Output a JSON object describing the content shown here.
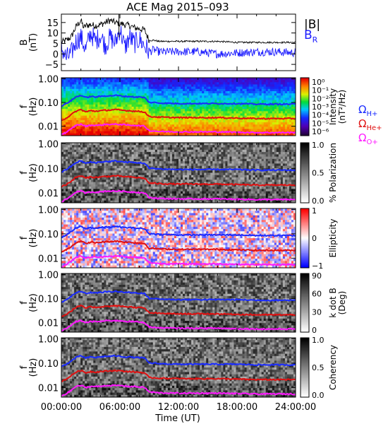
{
  "title": "ACE Mag 2015–093",
  "xlabel": "Time (UT)",
  "x_ticks": [
    "00:00:00",
    "06:00:00",
    "12:00:00",
    "18:00:00",
    "24:00:00"
  ],
  "x_range_hours": [
    0,
    24
  ],
  "colors": {
    "B_total": "#000000",
    "B_R": "#1a1aff",
    "H_plus": "#1a2bff",
    "He_plus": "#e01010",
    "O_plus": "#ff19ff"
  },
  "legend": {
    "b_total": "|B|",
    "b_r": "B",
    "b_r_sub": "R",
    "omega": "Ω",
    "h_sub": "H+",
    "he_sub": "He+",
    "o_sub": "O+"
  },
  "chart_data": [
    {
      "type": "line",
      "ylabel_main": "B",
      "ylabel_unit": "(nT)",
      "ylim": [
        -8,
        19
      ],
      "y_ticks": [
        "15",
        "10",
        "5",
        "0",
        "−5"
      ],
      "y_tick_values": [
        15,
        10,
        5,
        0,
        -5
      ],
      "series": [
        {
          "name": "|B|",
          "x_hours": [
            0,
            0.5,
            1,
            1.5,
            2,
            2.3,
            2.5,
            3,
            3.5,
            4,
            4.5,
            5,
            5.5,
            6,
            6.5,
            7,
            7.5,
            8,
            8.5,
            9,
            9.5,
            10,
            12,
            14,
            16,
            18,
            20,
            22,
            24
          ],
          "values": [
            5.5,
            6.5,
            8,
            13,
            16,
            12.5,
            13.5,
            14,
            13.5,
            14,
            15,
            16,
            15,
            14.5,
            14,
            13.5,
            12.5,
            12,
            11.5,
            6.5,
            6.5,
            6,
            6,
            6,
            6,
            5.5,
            5.5,
            5.5,
            5.5
          ]
        },
        {
          "name": "BR",
          "x_hours": [
            0,
            0.5,
            1,
            1.5,
            2,
            2.5,
            3,
            3.5,
            4,
            4.5,
            5,
            5.5,
            6,
            6.5,
            7,
            7.5,
            8,
            8.5,
            9,
            9.5,
            10,
            12,
            14,
            16,
            18,
            20,
            22,
            24
          ],
          "values": [
            3,
            -2,
            0,
            6,
            8,
            2,
            10,
            6,
            9,
            4,
            8,
            5,
            12,
            3,
            8,
            5,
            7,
            4,
            1,
            2,
            1,
            1,
            1,
            0,
            0.5,
            1,
            1,
            0.5
          ]
        }
      ]
    },
    {
      "type": "heatmap",
      "ylabel_main": "f",
      "ylabel_unit": "(Hz)",
      "y_log": true,
      "ylim": [
        0.004,
        1.1
      ],
      "y_ticks": [
        "1.00",
        "0.10",
        "0.01"
      ],
      "y_tick_values": [
        1,
        0.1,
        0.01
      ],
      "colorbar_label": "Intensity",
      "colorbar_unit": "(nT²/Hz)",
      "colorbar_ticks": [
        "10⁰",
        "10⁻¹",
        "10⁻²",
        "10⁻³",
        "10⁻⁴",
        "10⁻⁵",
        "10⁻⁶"
      ],
      "colorscale": "rainbow"
    },
    {
      "type": "heatmap",
      "ylabel_main": "f",
      "ylabel_unit": "(Hz)",
      "y_log": true,
      "ylim": [
        0.004,
        1.1
      ],
      "y_ticks": [
        "1.00",
        "0.10",
        "0.01"
      ],
      "y_tick_values": [
        1,
        0.1,
        0.01
      ],
      "colorbar_label": "% Polarization",
      "colorbar_ticks": [
        "1.0",
        "0.5",
        "0.0"
      ],
      "colorscale": "grey"
    },
    {
      "type": "heatmap",
      "ylabel_main": "f",
      "ylabel_unit": "(Hz)",
      "y_log": true,
      "ylim": [
        0.004,
        1.1
      ],
      "y_ticks": [
        "1.00",
        "0.10",
        "0.01"
      ],
      "y_tick_values": [
        1,
        0.1,
        0.01
      ],
      "colorbar_label": "Ellipticity",
      "colorbar_ticks": [
        "1",
        "0",
        "−1"
      ],
      "colorscale": "bluewhitered"
    },
    {
      "type": "heatmap",
      "ylabel_main": "f",
      "ylabel_unit": "(Hz)",
      "y_log": true,
      "ylim": [
        0.004,
        1.1
      ],
      "y_ticks": [
        "1.00",
        "0.10",
        "0.01"
      ],
      "y_tick_values": [
        1,
        0.1,
        0.01
      ],
      "colorbar_label": "k dot B",
      "colorbar_unit": "(Deg)",
      "colorbar_ticks": [
        "90",
        "60",
        "30",
        "0"
      ],
      "colorscale": "grey"
    },
    {
      "type": "heatmap",
      "ylabel_main": "f",
      "ylabel_unit": "(Hz)",
      "y_log": true,
      "ylim": [
        0.004,
        1.1
      ],
      "y_ticks": [
        "1.00",
        "0.10",
        "0.01"
      ],
      "y_tick_values": [
        1,
        0.1,
        0.01
      ],
      "colorbar_label": "Coherency",
      "colorbar_ticks": [
        "1.0",
        "0.5",
        "0.0"
      ],
      "colorscale": "grey"
    }
  ],
  "gyrofrequency_lines": {
    "x_hours": [
      0,
      0.5,
      1,
      1.5,
      2,
      2.5,
      3,
      3.5,
      4,
      4.5,
      5,
      5.5,
      6,
      6.5,
      7,
      7.5,
      8,
      8.5,
      9,
      9.5,
      10,
      12,
      14,
      16,
      18,
      20,
      22,
      24
    ],
    "H_plus_hz": [
      0.07,
      0.09,
      0.12,
      0.17,
      0.2,
      0.16,
      0.18,
      0.17,
      0.18,
      0.19,
      0.19,
      0.2,
      0.19,
      0.18,
      0.18,
      0.17,
      0.17,
      0.16,
      0.1,
      0.1,
      0.095,
      0.09,
      0.09,
      0.09,
      0.09,
      0.085,
      0.085,
      0.085
    ],
    "He_plus_hz": [
      0.018,
      0.022,
      0.03,
      0.043,
      0.05,
      0.04,
      0.045,
      0.043,
      0.045,
      0.047,
      0.048,
      0.05,
      0.048,
      0.046,
      0.045,
      0.043,
      0.042,
      0.04,
      0.025,
      0.025,
      0.024,
      0.023,
      0.023,
      0.023,
      0.022,
      0.021,
      0.021,
      0.021
    ],
    "O_plus_hz": [
      0.0045,
      0.0055,
      0.0075,
      0.011,
      0.012,
      0.01,
      0.011,
      0.011,
      0.011,
      0.012,
      0.012,
      0.012,
      0.012,
      0.0115,
      0.011,
      0.011,
      0.0105,
      0.01,
      0.0065,
      0.0063,
      0.006,
      0.0058,
      0.0058,
      0.0058,
      0.0056,
      0.0054,
      0.0054,
      0.0054
    ]
  }
}
